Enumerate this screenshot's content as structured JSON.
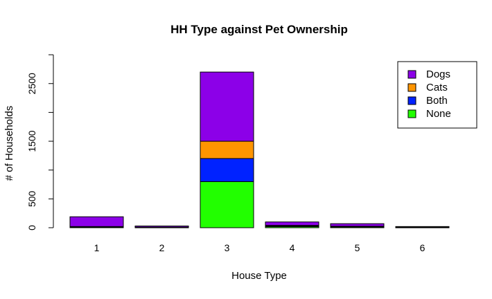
{
  "chart_data": {
    "type": "bar",
    "stacked": true,
    "title": "HH Type against Pet Ownership",
    "xlabel": "House Type",
    "ylabel": "# of Households",
    "categories": [
      "1",
      "2",
      "3",
      "4",
      "5",
      "6"
    ],
    "ylim": [
      0,
      3000
    ],
    "yticks": [
      0,
      500,
      1000,
      1500,
      2000,
      2500,
      3000
    ],
    "ytick_labels": [
      "0",
      "500",
      "",
      "1500",
      "",
      "2500",
      ""
    ],
    "series": [
      {
        "name": "None",
        "color": "#22ff00",
        "values": [
          10,
          5,
          800,
          20,
          15,
          5
        ]
      },
      {
        "name": "Both",
        "color": "#0022ff",
        "values": [
          5,
          3,
          400,
          10,
          5,
          3
        ]
      },
      {
        "name": "Cats",
        "color": "#ff9500",
        "values": [
          5,
          2,
          300,
          10,
          5,
          2
        ]
      },
      {
        "name": "Dogs",
        "color": "#8c00e8",
        "values": [
          170,
          20,
          1200,
          60,
          45,
          10
        ]
      }
    ],
    "legend": {
      "placement": "top-right",
      "order": [
        "Dogs",
        "Cats",
        "Both",
        "None"
      ]
    },
    "grid": false
  }
}
